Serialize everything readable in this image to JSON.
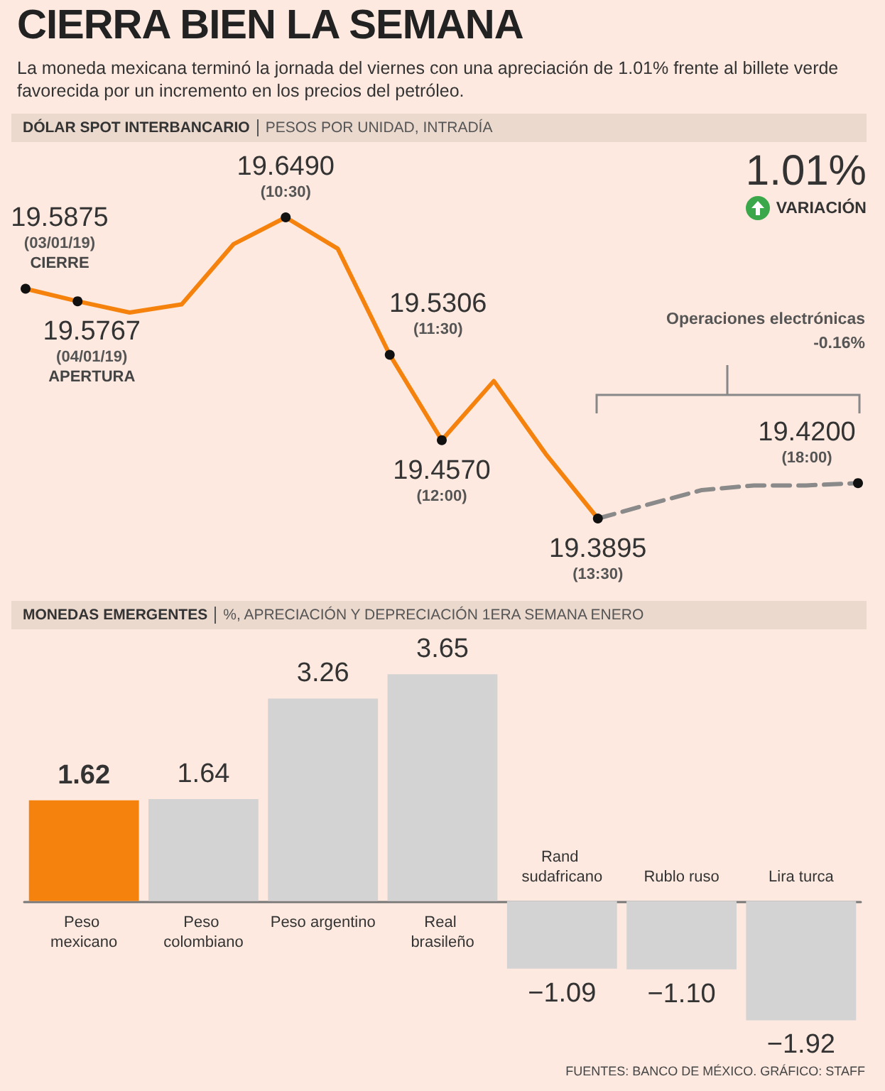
{
  "chart_data": [
    {
      "type": "line",
      "title": "DÓLAR SPOT INTERBANCARIO",
      "subtitle": "PESOS POR UNIDAD, INTRADÍA",
      "annotations": [
        "CIERRA BIEN LA SEMANA",
        "La moneda mexicana terminó la jornada del viernes con una apreciación de 1.01% frente al billete verde favorecida por un incremento en los precios del petróleo.",
        "1.01%",
        "VARIACIÓN",
        "Operaciones electrónicas",
        "-0.16%"
      ],
      "categories": [
        null,
        null,
        null,
        null,
        null,
        null,
        null,
        null,
        null,
        null,
        null,
        null,
        null,
        null,
        null,
        null,
        null
      ],
      "series": [
        {
          "color": "#f5820d",
          "line_style": "solid",
          "values": [
            19.5875,
            19.5767,
            19.567,
            19.574,
            19.626,
            19.649,
            19.622,
            19.5306,
            19.457,
            19.508,
            19.445,
            19.3895,
            null,
            null,
            null,
            null,
            null
          ],
          "value_labels": [
            "19.5875\n(03/01/19)\nCIERRE",
            "19.5767\n(04/01/19)\nAPERTURA",
            null,
            null,
            null,
            "19.6490\n(10:30)",
            null,
            "19.5306\n(11:30)",
            "19.4570\n(12:00)",
            null,
            null,
            "19.3895\n(13:30)",
            null,
            null,
            null,
            null,
            null
          ]
        },
        {
          "color": "#8a8a8a",
          "line_style": "dashed",
          "values": [
            null,
            null,
            null,
            null,
            null,
            null,
            null,
            null,
            null,
            null,
            null,
            19.3895,
            19.402,
            19.414,
            19.418,
            19.418,
            19.42
          ],
          "value_labels": [
            null,
            null,
            null,
            null,
            null,
            null,
            null,
            null,
            null,
            null,
            null,
            null,
            null,
            null,
            null,
            null,
            "19.4200\n(18:00)"
          ]
        }
      ]
    },
    {
      "type": "bar",
      "title": "MONEDAS EMERGENTES",
      "subtitle": "%, APRECIACIÓN Y DEPRECIACIÓN 1ERA SEMANA ENERO",
      "annotations": [
        "FUENTES: BANCO DE MÉXICO. GRÁFICO: STAFF"
      ],
      "categories": [
        "Peso mexicano",
        "Peso colombiano",
        "Peso argentino",
        "Real brasileño",
        "Rand sudafricano",
        "Rublo ruso",
        "Lira turca"
      ],
      "values": [
        1.62,
        1.64,
        3.26,
        3.65,
        -1.09,
        -1.1,
        -1.92
      ],
      "colors": [
        "#f5820d",
        "#d3d3d3",
        "#d3d3d3",
        "#d3d3d3",
        "#d3d3d3",
        "#d3d3d3",
        "#d3d3d3"
      ],
      "value_labels": [
        "1.62",
        "1.64",
        "3.26",
        "3.65",
        "−1.09",
        "−1.10",
        "−1.92"
      ]
    }
  ]
}
